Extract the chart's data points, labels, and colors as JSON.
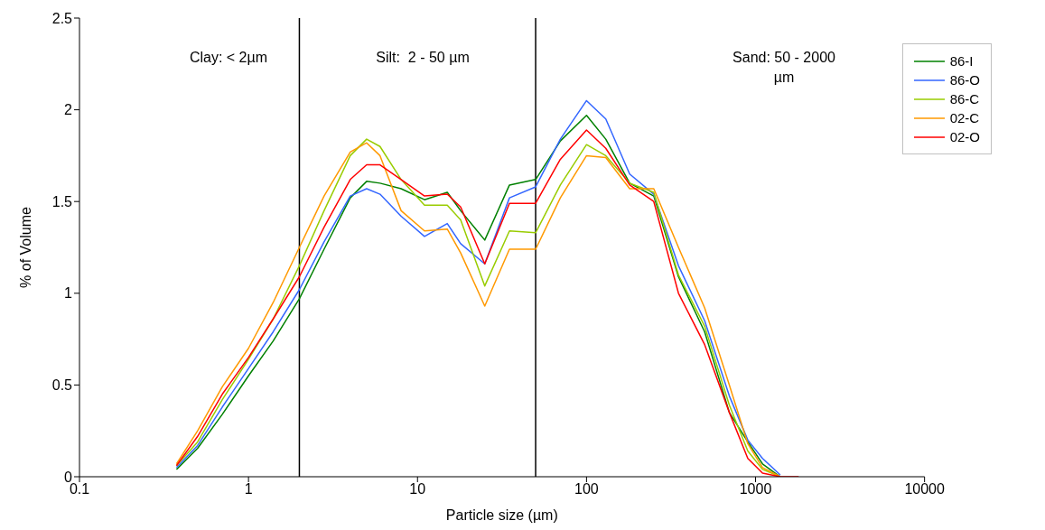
{
  "chart_data": {
    "type": "line",
    "xlabel": "Particle size (µm)",
    "ylabel": "% of Volume",
    "log": "x",
    "x": [
      0.375,
      0.5,
      0.7,
      1,
      1.4,
      2,
      2.8,
      4,
      5,
      6,
      8,
      11,
      15,
      18,
      25,
      35,
      50,
      70,
      100,
      130,
      180,
      250,
      350,
      500,
      700,
      900,
      1100,
      1400,
      1800
    ],
    "series": [
      {
        "name": "86-I",
        "color": "#008000",
        "values": [
          0.04,
          0.155,
          0.34,
          0.55,
          0.74,
          0.97,
          1.24,
          1.52,
          1.61,
          1.6,
          1.57,
          1.51,
          1.55,
          1.45,
          1.29,
          1.59,
          1.62,
          1.83,
          1.97,
          1.84,
          1.6,
          1.53,
          1.09,
          0.79,
          0.35,
          0.19,
          0.07,
          0,
          null
        ]
      },
      {
        "name": "86-O",
        "color": "#3366ff",
        "values": [
          0.05,
          0.17,
          0.38,
          0.59,
          0.79,
          1.02,
          1.28,
          1.53,
          1.57,
          1.54,
          1.42,
          1.31,
          1.38,
          1.27,
          1.16,
          1.52,
          1.58,
          1.84,
          2.05,
          1.95,
          1.65,
          1.54,
          1.15,
          0.85,
          0.44,
          0.2,
          0.1,
          0.01,
          null
        ]
      },
      {
        "name": "86-C",
        "color": "#99cc00",
        "values": [
          0.06,
          0.19,
          0.42,
          0.64,
          0.86,
          1.15,
          1.45,
          1.75,
          1.84,
          1.8,
          1.62,
          1.48,
          1.48,
          1.4,
          1.04,
          1.34,
          1.33,
          1.59,
          1.81,
          1.75,
          1.6,
          1.55,
          1.1,
          0.82,
          0.39,
          0.14,
          0.04,
          0,
          null
        ]
      },
      {
        "name": "02-C",
        "color": "#ff9900",
        "values": [
          0.07,
          0.25,
          0.49,
          0.7,
          0.95,
          1.25,
          1.53,
          1.77,
          1.82,
          1.75,
          1.45,
          1.34,
          1.35,
          1.22,
          0.93,
          1.24,
          1.24,
          1.52,
          1.75,
          1.74,
          1.57,
          1.57,
          1.25,
          0.92,
          0.5,
          0.18,
          0.05,
          0,
          null
        ]
      },
      {
        "name": "02-O",
        "color": "#ff0000",
        "values": [
          0.06,
          0.22,
          0.45,
          0.65,
          0.86,
          1.09,
          1.36,
          1.62,
          1.7,
          1.7,
          1.62,
          1.53,
          1.54,
          1.47,
          1.16,
          1.49,
          1.49,
          1.73,
          1.89,
          1.79,
          1.59,
          1.5,
          1.0,
          0.72,
          0.35,
          0.1,
          0.02,
          0,
          0
        ]
      }
    ],
    "xlim": [
      0.1,
      10000
    ],
    "xticks": [
      0.1,
      1,
      10,
      100,
      1000,
      10000
    ],
    "ylim": [
      0,
      2.5
    ],
    "yticks": [
      0,
      0.5,
      1,
      1.5,
      2,
      2.5
    ],
    "legend": "top right",
    "marker": "none",
    "line_style": "solid",
    "ref_lines": [
      {
        "axis": "x",
        "value": 2,
        "color": "#000000"
      },
      {
        "axis": "x",
        "value": 50,
        "color": "#000000"
      }
    ],
    "annotations": [
      "Clay: < 2µm",
      "Silt:  2 - 50 µm",
      "Sand: 50 - 2000 µm"
    ]
  }
}
